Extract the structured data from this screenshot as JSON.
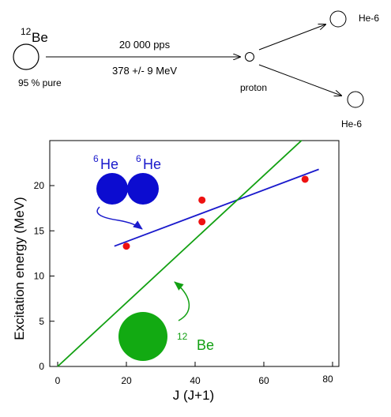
{
  "reaction": {
    "beam_nucleus": {
      "mass_number": "12",
      "symbol": "Be",
      "purity": "95 % pure"
    },
    "beam_rate": "20 000 pps",
    "beam_energy": "378 +/- 9 MeV",
    "target": "proton",
    "product_upper": "He-6",
    "product_lower": "He-6"
  },
  "chart_data": {
    "type": "scatter",
    "xlabel": "J (J+1)",
    "ylabel": "Excitation energy (MeV)",
    "xlim": [
      0,
      80
    ],
    "ylim": [
      0,
      25
    ],
    "x_ticks": [
      0,
      20,
      40,
      60,
      80
    ],
    "y_ticks": [
      0,
      5,
      10,
      15,
      20
    ],
    "points": [
      {
        "x": 20,
        "y": 13.3
      },
      {
        "x": 42,
        "y": 18.4
      },
      {
        "x": 42,
        "y": 16.0
      },
      {
        "x": 72,
        "y": 20.7
      }
    ],
    "fit_lines": [
      {
        "name": "6He+6He",
        "color": "#1a1acc",
        "x": [
          16.5,
          76
        ],
        "y": [
          13.3,
          21.8
        ]
      },
      {
        "name": "12Be",
        "color": "#12a012",
        "x": [
          0,
          71
        ],
        "y": [
          0,
          25
        ]
      }
    ],
    "annotations": {
      "cluster": {
        "mass_a": "6",
        "symbol_a": "He",
        "mass_b": "6",
        "symbol_b": "He",
        "color": "#1a1acc"
      },
      "compact": {
        "mass_number": "12",
        "symbol": "Be",
        "color": "#12a012"
      }
    },
    "point_color": "#ee1111"
  }
}
